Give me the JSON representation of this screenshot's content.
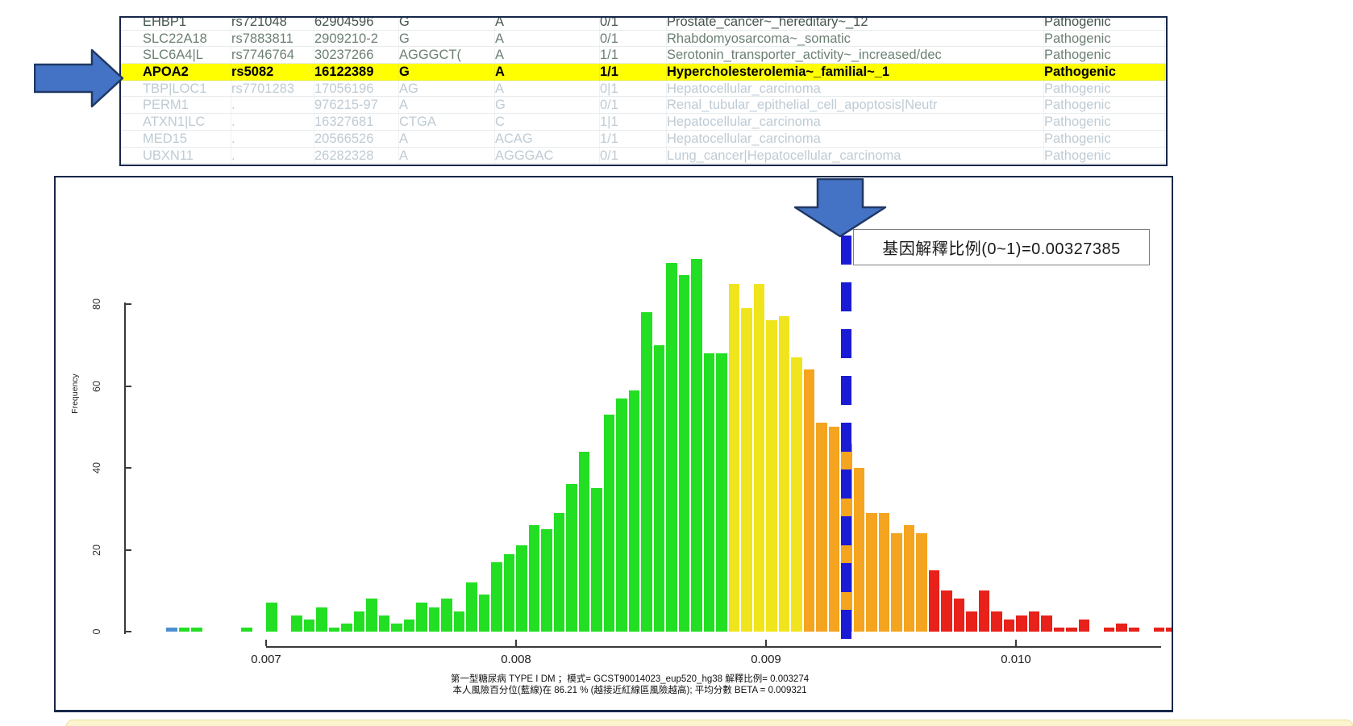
{
  "table": {
    "rows": [
      {
        "gene": "EHBP1",
        "rsid": "rs721048",
        "pos": "62904596",
        "ref": "G",
        "alt": "A",
        "gt": "0/1",
        "condition": "Prostate_cancer~_hereditary~_12",
        "significance": "Pathogenic",
        "tone": "dark"
      },
      {
        "gene": "SLC22A18",
        "rsid": "rs7883811",
        "pos": "2909210-2",
        "ref": "G",
        "alt": "A",
        "gt": "0/1",
        "condition": "Rhabdomyosarcoma~_somatic",
        "significance": "Pathogenic",
        "tone": "mid"
      },
      {
        "gene": "SLC6A4|L",
        "rsid": "rs7746764",
        "pos": "30237266",
        "ref": "AGGGCT(",
        "alt": "A",
        "gt": "1/1",
        "condition": "Serotonin_transporter_activity~_increased/dec",
        "significance": "Pathogenic",
        "tone": "mid"
      },
      {
        "gene": "APOA2",
        "rsid": "rs5082",
        "pos": "16122389",
        "ref": "G",
        "alt": "A",
        "gt": "1/1",
        "condition": "Hypercholesterolemia~_familial~_1",
        "significance": "Pathogenic",
        "tone": "highlight"
      },
      {
        "gene": "TBP|LOC1",
        "rsid": "rs7701283",
        "pos": "17056196",
        "ref": "AG",
        "alt": "A",
        "gt": "0|1",
        "condition": "Hepatocellular_carcinoma",
        "significance": "Pathogenic",
        "tone": "faded"
      },
      {
        "gene": "PERM1",
        "rsid": ".",
        "pos": "976215-97",
        "ref": "A",
        "alt": "G",
        "gt": "0/1",
        "condition": "Renal_tubular_epithelial_cell_apoptosis|Neutr",
        "significance": "Pathogenic",
        "tone": "faded"
      },
      {
        "gene": "ATXN1|LC",
        "rsid": ".",
        "pos": "16327681",
        "ref": "CTGA",
        "alt": "C",
        "gt": "1|1",
        "condition": "Hepatocellular_carcinoma",
        "significance": "Pathogenic",
        "tone": "faded"
      },
      {
        "gene": "MED15",
        "rsid": ".",
        "pos": "20566526",
        "ref": "A",
        "alt": "ACAG",
        "gt": "1/1",
        "condition": "Hepatocellular_carcinoma",
        "significance": "Pathogenic",
        "tone": "faded"
      },
      {
        "gene": "UBXN11",
        "rsid": ".",
        "pos": "26282328",
        "ref": "A",
        "alt": "AGGGAC",
        "gt": "0/1",
        "condition": "Lung_cancer|Hepatocellular_carcinoma",
        "significance": "Pathogenic",
        "tone": "faded"
      }
    ]
  },
  "annotations": {
    "gene_ratio_label": "基因解釋比例(0~1)=0.00327385"
  },
  "chart_data": {
    "type": "bar",
    "subtype": "histogram",
    "title": "",
    "xlabel": "",
    "ylabel": "Frequency",
    "x_ticks": [
      0.007,
      0.008,
      0.009,
      0.01
    ],
    "y_ticks": [
      0,
      20,
      40,
      60,
      80
    ],
    "xlim": [
      0.0066,
      0.01065
    ],
    "ylim": [
      0,
      91
    ],
    "bin_width": 5e-05,
    "grid": false,
    "legend": false,
    "marker_line": {
      "value": 0.009321,
      "style": "dashed",
      "color": "#1b1bd6"
    },
    "caption_line1": "第一型糖尿病 TYPE I DM ；模式= GCST90014023_eup520_hg38 解釋比例= 0.003274",
    "caption_line2": "本人風險百分位(藍線)在 86.21 % (越接近紅線區風險越高); 平均分數 BETA = 0.009321",
    "colors": {
      "green": "#23df23",
      "yellow": "#f0e41c",
      "orange": "#f5a41f",
      "red": "#e8211a",
      "blue": "#4e8fd0"
    },
    "bars": [
      {
        "x": 0.0066,
        "h": 1,
        "c": "blue"
      },
      {
        "x": 0.00665,
        "h": 1,
        "c": "green"
      },
      {
        "x": 0.0067,
        "h": 1,
        "c": "green"
      },
      {
        "x": 0.0069,
        "h": 1,
        "c": "green"
      },
      {
        "x": 0.007,
        "h": 7,
        "c": "green"
      },
      {
        "x": 0.0071,
        "h": 4,
        "c": "green"
      },
      {
        "x": 0.00715,
        "h": 3,
        "c": "green"
      },
      {
        "x": 0.0072,
        "h": 6,
        "c": "green"
      },
      {
        "x": 0.00725,
        "h": 1,
        "c": "green"
      },
      {
        "x": 0.0073,
        "h": 2,
        "c": "green"
      },
      {
        "x": 0.00735,
        "h": 5,
        "c": "green"
      },
      {
        "x": 0.0074,
        "h": 8,
        "c": "green"
      },
      {
        "x": 0.00745,
        "h": 4,
        "c": "green"
      },
      {
        "x": 0.0075,
        "h": 2,
        "c": "green"
      },
      {
        "x": 0.00755,
        "h": 3,
        "c": "green"
      },
      {
        "x": 0.0076,
        "h": 7,
        "c": "green"
      },
      {
        "x": 0.00765,
        "h": 6,
        "c": "green"
      },
      {
        "x": 0.0077,
        "h": 8,
        "c": "green"
      },
      {
        "x": 0.00775,
        "h": 5,
        "c": "green"
      },
      {
        "x": 0.0078,
        "h": 12,
        "c": "green"
      },
      {
        "x": 0.00785,
        "h": 9,
        "c": "green"
      },
      {
        "x": 0.0079,
        "h": 17,
        "c": "green"
      },
      {
        "x": 0.00795,
        "h": 19,
        "c": "green"
      },
      {
        "x": 0.008,
        "h": 21,
        "c": "green"
      },
      {
        "x": 0.00805,
        "h": 26,
        "c": "green"
      },
      {
        "x": 0.0081,
        "h": 25,
        "c": "green"
      },
      {
        "x": 0.00815,
        "h": 29,
        "c": "green"
      },
      {
        "x": 0.0082,
        "h": 36,
        "c": "green"
      },
      {
        "x": 0.00825,
        "h": 44,
        "c": "green"
      },
      {
        "x": 0.0083,
        "h": 35,
        "c": "green"
      },
      {
        "x": 0.00835,
        "h": 53,
        "c": "green"
      },
      {
        "x": 0.0084,
        "h": 57,
        "c": "green"
      },
      {
        "x": 0.00845,
        "h": 59,
        "c": "green"
      },
      {
        "x": 0.0085,
        "h": 78,
        "c": "green"
      },
      {
        "x": 0.00855,
        "h": 70,
        "c": "green"
      },
      {
        "x": 0.0086,
        "h": 90,
        "c": "green"
      },
      {
        "x": 0.00865,
        "h": 87,
        "c": "green"
      },
      {
        "x": 0.0087,
        "h": 91,
        "c": "green"
      },
      {
        "x": 0.00875,
        "h": 68,
        "c": "green"
      },
      {
        "x": 0.0088,
        "h": 68,
        "c": "green"
      },
      {
        "x": 0.00885,
        "h": 85,
        "c": "yellow"
      },
      {
        "x": 0.0089,
        "h": 79,
        "c": "yellow"
      },
      {
        "x": 0.00895,
        "h": 85,
        "c": "yellow"
      },
      {
        "x": 0.009,
        "h": 76,
        "c": "yellow"
      },
      {
        "x": 0.00905,
        "h": 77,
        "c": "yellow"
      },
      {
        "x": 0.0091,
        "h": 67,
        "c": "yellow"
      },
      {
        "x": 0.00915,
        "h": 64,
        "c": "orange"
      },
      {
        "x": 0.0092,
        "h": 51,
        "c": "orange"
      },
      {
        "x": 0.00925,
        "h": 50,
        "c": "orange"
      },
      {
        "x": 0.0093,
        "h": 46,
        "c": "orange"
      },
      {
        "x": 0.00935,
        "h": 40,
        "c": "orange"
      },
      {
        "x": 0.0094,
        "h": 29,
        "c": "orange"
      },
      {
        "x": 0.00945,
        "h": 29,
        "c": "orange"
      },
      {
        "x": 0.0095,
        "h": 24,
        "c": "orange"
      },
      {
        "x": 0.00955,
        "h": 26,
        "c": "orange"
      },
      {
        "x": 0.0096,
        "h": 24,
        "c": "orange"
      },
      {
        "x": 0.00965,
        "h": 15,
        "c": "red"
      },
      {
        "x": 0.0097,
        "h": 10,
        "c": "red"
      },
      {
        "x": 0.00975,
        "h": 8,
        "c": "red"
      },
      {
        "x": 0.0098,
        "h": 5,
        "c": "red"
      },
      {
        "x": 0.00985,
        "h": 10,
        "c": "red"
      },
      {
        "x": 0.0099,
        "h": 5,
        "c": "red"
      },
      {
        "x": 0.00995,
        "h": 3,
        "c": "red"
      },
      {
        "x": 0.01,
        "h": 4,
        "c": "red"
      },
      {
        "x": 0.01005,
        "h": 5,
        "c": "red"
      },
      {
        "x": 0.0101,
        "h": 4,
        "c": "red"
      },
      {
        "x": 0.01015,
        "h": 1,
        "c": "red"
      },
      {
        "x": 0.0102,
        "h": 1,
        "c": "red"
      },
      {
        "x": 0.01025,
        "h": 3,
        "c": "red"
      },
      {
        "x": 0.01035,
        "h": 1,
        "c": "red"
      },
      {
        "x": 0.0104,
        "h": 2,
        "c": "red"
      },
      {
        "x": 0.01045,
        "h": 1,
        "c": "red"
      },
      {
        "x": 0.01055,
        "h": 1,
        "c": "red"
      },
      {
        "x": 0.0106,
        "h": 1,
        "c": "red"
      }
    ]
  }
}
